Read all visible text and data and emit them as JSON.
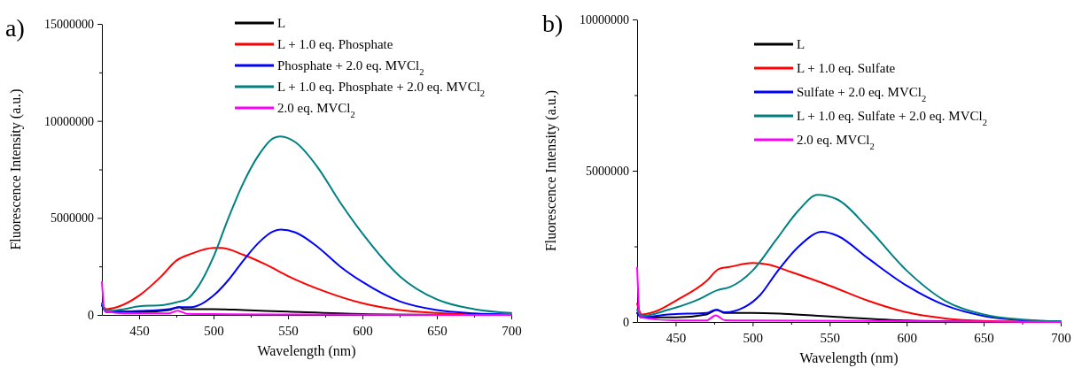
{
  "chart_data": [
    {
      "type": "line",
      "title": "a)",
      "xlabel": "Wavelength (nm)",
      "ylabel": "Fluorescence Intensity (a.u.)",
      "xlim": [
        425,
        700
      ],
      "ylim": [
        0,
        15000000
      ],
      "xticks": [
        450,
        {
          "value": 475,
          "label": null
        },
        500,
        {
          "value": 525,
          "label": null
        },
        550,
        {
          "value": 575,
          "label": null
        },
        600,
        {
          "value": 625,
          "label": null
        },
        650,
        {
          "value": 675,
          "label": null
        },
        700
      ],
      "yticks": [
        0,
        {
          "value": 2500000,
          "label": null
        },
        5000000,
        {
          "value": 7500000,
          "label": null
        },
        10000000,
        {
          "value": 12500000,
          "label": null
        },
        15000000
      ],
      "legend": "top",
      "grid": false,
      "marker": "none",
      "line_style": "solid",
      "series": [
        {
          "name": "L",
          "color": "#000000",
          "x": [
            425,
            428,
            450,
            470,
            477,
            480,
            500,
            520,
            550,
            600,
            650,
            700
          ],
          "values": [
            500000,
            200000,
            150000,
            250000,
            400000,
            300000,
            300000,
            250000,
            170000,
            50000,
            10000,
            0
          ]
        },
        {
          "name": "L + 1.0 eq. Phosphate",
          "color": "#ff0000",
          "x": [
            425,
            428,
            435,
            450,
            465,
            475,
            485,
            500,
            505,
            520,
            535,
            550,
            575,
            600,
            625,
            650,
            675,
            700
          ],
          "values": [
            600000,
            300000,
            400000,
            1000000,
            2000000,
            2800000,
            3150000,
            3450000,
            3450000,
            3100000,
            2600000,
            2000000,
            1200000,
            600000,
            250000,
            100000,
            30000,
            10000
          ]
        },
        {
          "name": "Phosphate + 2.0 eq. MVCl$_{2}$",
          "color": "#0000ff",
          "x": [
            425,
            428,
            450,
            470,
            477,
            485,
            500,
            510,
            520,
            530,
            540,
            545,
            555,
            570,
            585,
            600,
            625,
            650,
            675,
            700
          ],
          "values": [
            500000,
            150000,
            200000,
            300000,
            400000,
            400000,
            1000000,
            1800000,
            2800000,
            3700000,
            4300000,
            4400000,
            4250000,
            3500000,
            2500000,
            1700000,
            700000,
            250000,
            80000,
            20000
          ]
        },
        {
          "name": "L + 1.0 eq. Phosphate + 2.0 eq. MVCl$_{2}$",
          "color": "#008080",
          "x": [
            425,
            428,
            440,
            450,
            465,
            475,
            482,
            490,
            500,
            510,
            520,
            530,
            540,
            545,
            555,
            570,
            585,
            600,
            625,
            650,
            675,
            700
          ],
          "values": [
            600000,
            200000,
            300000,
            450000,
            500000,
            650000,
            800000,
            1500000,
            3000000,
            5000000,
            6800000,
            8200000,
            9100000,
            9200000,
            8900000,
            7600000,
            5800000,
            4200000,
            2000000,
            800000,
            300000,
            100000
          ]
        },
        {
          "name": "2.0 eq. MVCl$_{2}$",
          "color": "#ff00ff",
          "x": [
            425,
            427,
            440,
            470,
            476,
            482,
            500,
            550,
            700
          ],
          "values": [
            1700000,
            200000,
            80000,
            80000,
            220000,
            60000,
            40000,
            20000,
            0
          ]
        }
      ]
    },
    {
      "type": "line",
      "title": "b)",
      "xlabel": "Wavelength (nm)",
      "ylabel": "Fluorescence Intensity (a.u.)",
      "xlim": [
        425,
        700
      ],
      "ylim": [
        0,
        10000000
      ],
      "xticks": [
        450,
        {
          "value": 475,
          "label": null
        },
        500,
        {
          "value": 525,
          "label": null
        },
        550,
        {
          "value": 575,
          "label": null
        },
        600,
        {
          "value": 625,
          "label": null
        },
        650,
        {
          "value": 675,
          "label": null
        },
        700
      ],
      "yticks": [
        0,
        {
          "value": 2500000,
          "label": null
        },
        5000000,
        {
          "value": 7500000,
          "label": null
        },
        10000000
      ],
      "legend": "top",
      "grid": false,
      "marker": "none",
      "line_style": "solid",
      "series": [
        {
          "name": "L",
          "color": "#000000",
          "x": [
            425,
            428,
            450,
            470,
            477,
            482,
            500,
            520,
            550,
            600,
            650,
            700
          ],
          "values": [
            300000,
            150000,
            150000,
            250000,
            400000,
            300000,
            300000,
            270000,
            180000,
            50000,
            10000,
            0
          ]
        },
        {
          "name": "L + 1.0 eq. Sulfate",
          "color": "#ff0000",
          "x": [
            425,
            428,
            437,
            450,
            470,
            478,
            485,
            500,
            510,
            525,
            550,
            575,
            600,
            625,
            650,
            700
          ],
          "values": [
            600000,
            250000,
            350000,
            700000,
            1350000,
            1750000,
            1820000,
            1950000,
            1900000,
            1650000,
            1200000,
            700000,
            320000,
            120000,
            40000,
            0
          ]
        },
        {
          "name": "Sulfate + 2.0 eq. MVCl$_{2}$",
          "color": "#0000ff",
          "x": [
            425,
            428,
            445,
            470,
            476,
            482,
            495,
            505,
            515,
            530,
            545,
            555,
            575,
            600,
            625,
            650,
            675,
            700
          ],
          "values": [
            300000,
            150000,
            250000,
            300000,
            400000,
            320000,
            500000,
            900000,
            1600000,
            2500000,
            2980000,
            2850000,
            2100000,
            1200000,
            550000,
            200000,
            60000,
            20000
          ]
        },
        {
          "name": "L + 1.0 eq. Sulfate + 2.0 eq. MVCl$_{2}$",
          "color": "#008080",
          "x": [
            425,
            428,
            445,
            465,
            477,
            485,
            500,
            515,
            530,
            542,
            555,
            575,
            600,
            625,
            650,
            675,
            700
          ],
          "values": [
            400000,
            200000,
            400000,
            750000,
            1050000,
            1150000,
            1700000,
            2700000,
            3700000,
            4200000,
            4050000,
            3100000,
            1700000,
            700000,
            250000,
            80000,
            20000
          ]
        },
        {
          "name": "2.0 eq. MVCl$_{2}$",
          "color": "#ff00ff",
          "x": [
            425,
            427,
            450,
            470,
            476,
            482,
            500,
            700
          ],
          "values": [
            1800000,
            150000,
            50000,
            50000,
            220000,
            60000,
            50000,
            0
          ]
        }
      ]
    }
  ]
}
